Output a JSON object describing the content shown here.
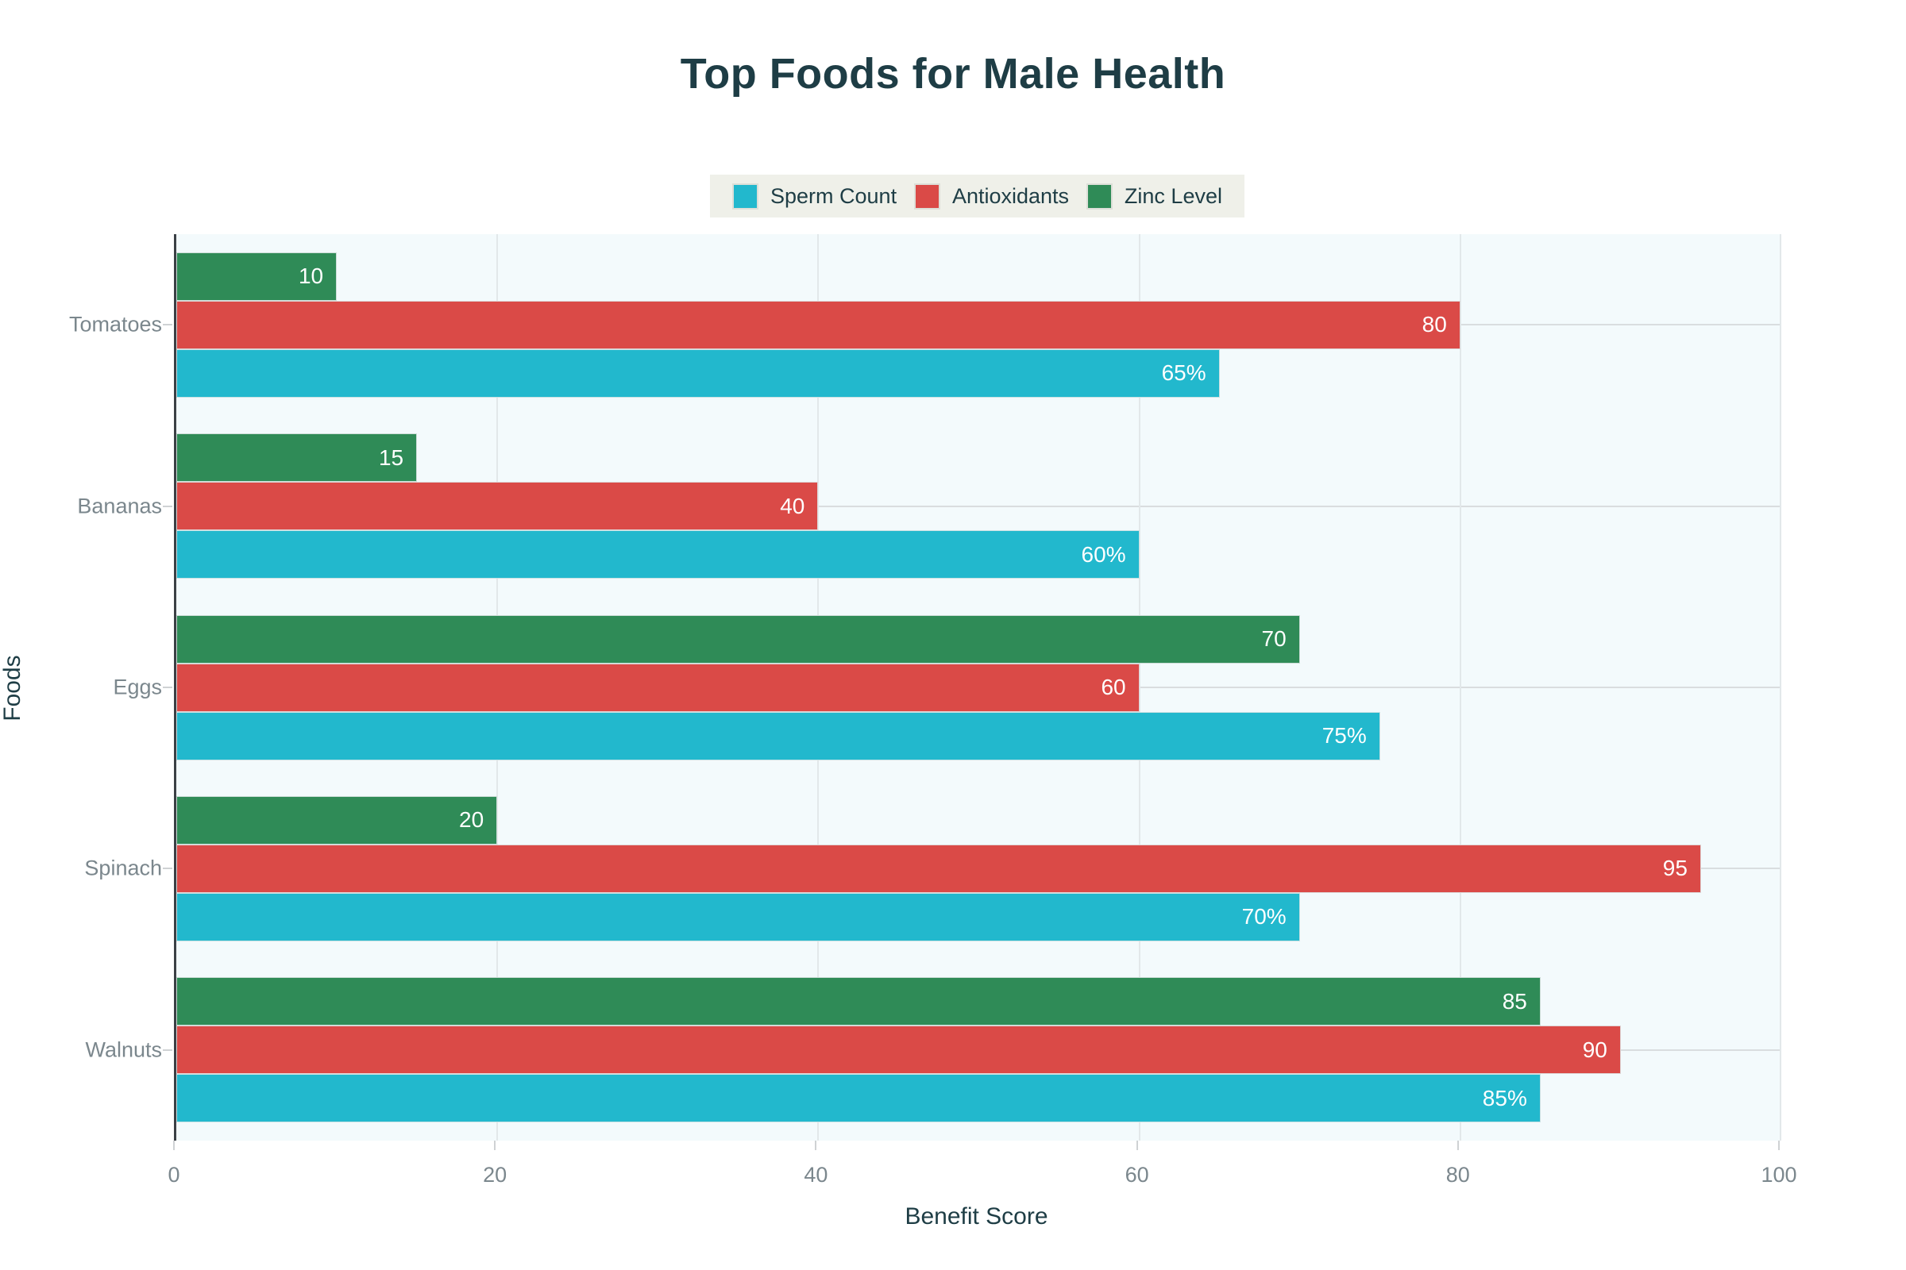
{
  "title": "Top Foods for Male Health",
  "legend": {
    "items": [
      {
        "label": "Sperm Count",
        "color": "#22b8cd"
      },
      {
        "label": "Antioxidants",
        "color": "#da4a47"
      },
      {
        "label": "Zinc Level",
        "color": "#2f8b57"
      }
    ]
  },
  "axes": {
    "x_title": "Benefit Score",
    "y_title": "Foods"
  },
  "colors": {
    "title_text": "#1e3d45",
    "tick_text": "#7b878d",
    "plot_background": "#f3fafc",
    "legend_background": "#eff0e9",
    "axis_line": "#3b4045",
    "gridline": "#e2e8ea",
    "sperm_count": "#22b8cd",
    "antioxidants": "#da4a47",
    "zinc_level": "#2f8b57"
  },
  "chart_data": {
    "type": "bar",
    "orientation": "horizontal",
    "title": "Top Foods for Male Health",
    "xlabel": "Benefit Score",
    "ylabel": "Foods",
    "xlim": [
      0,
      100
    ],
    "xticks": [
      0,
      20,
      40,
      60,
      80,
      100
    ],
    "grid": true,
    "legend_position": "top-center",
    "categories": [
      "Tomatoes",
      "Bananas",
      "Eggs",
      "Spinach",
      "Walnuts"
    ],
    "series": [
      {
        "name": "Sperm Count",
        "color": "#22b8cd",
        "values": [
          65,
          60,
          75,
          70,
          85
        ],
        "labels": [
          "65%",
          "60%",
          "75%",
          "70%",
          "85%"
        ]
      },
      {
        "name": "Antioxidants",
        "color": "#da4a47",
        "values": [
          80,
          40,
          60,
          95,
          90
        ],
        "labels": [
          "80",
          "40",
          "60",
          "95",
          "90"
        ]
      },
      {
        "name": "Zinc Level",
        "color": "#2f8b57",
        "values": [
          10,
          15,
          70,
          20,
          85
        ],
        "labels": [
          "10",
          "15",
          "70",
          "20",
          "85"
        ]
      }
    ],
    "bar_order_top_to_bottom": [
      "Zinc Level",
      "Antioxidants",
      "Sperm Count"
    ]
  }
}
